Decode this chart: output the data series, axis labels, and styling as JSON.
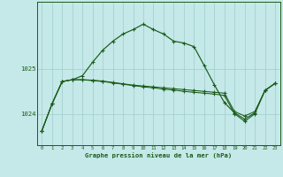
{
  "background_color": "#c5e8e8",
  "grid_color": "#a0cccc",
  "line_color": "#1a5c1a",
  "x_labels": [
    "0",
    "1",
    "2",
    "3",
    "4",
    "5",
    "6",
    "7",
    "8",
    "9",
    "10",
    "11",
    "12",
    "13",
    "14",
    "15",
    "16",
    "17",
    "18",
    "19",
    "20",
    "21",
    "22",
    "23"
  ],
  "y_ticks": [
    1024,
    1025
  ],
  "ylim": [
    1023.3,
    1026.5
  ],
  "xlim": [
    -0.5,
    23.5
  ],
  "s1": [
    1023.62,
    1024.22,
    1024.72,
    1024.76,
    1024.85,
    1025.15,
    1025.42,
    1025.62,
    1025.78,
    1025.88,
    1026.0,
    1025.88,
    1025.78,
    1025.62,
    1025.58,
    1025.5,
    1025.08,
    1024.65,
    1024.25,
    1024.02,
    1023.88,
    1024.02,
    1024.52,
    1024.68
  ],
  "s2": [
    1023.62,
    1024.22,
    1024.72,
    1024.76,
    1024.76,
    1024.75,
    1024.73,
    1024.7,
    1024.67,
    1024.64,
    1024.62,
    1024.6,
    1024.58,
    1024.56,
    1024.54,
    1024.52,
    1024.5,
    1024.48,
    1024.46,
    1024.05,
    1023.95,
    1024.05,
    1024.52,
    1024.68
  ],
  "s3": [
    1023.62,
    1024.22,
    1024.72,
    1024.76,
    1024.76,
    1024.74,
    1024.72,
    1024.69,
    1024.66,
    1024.63,
    1024.6,
    1024.58,
    1024.55,
    1024.53,
    1024.5,
    1024.48,
    1024.46,
    1024.44,
    1024.41,
    1024.0,
    1023.83,
    1024.0,
    1024.52,
    1024.68
  ],
  "xlabel": "Graphe pression niveau de la mer (hPa)"
}
